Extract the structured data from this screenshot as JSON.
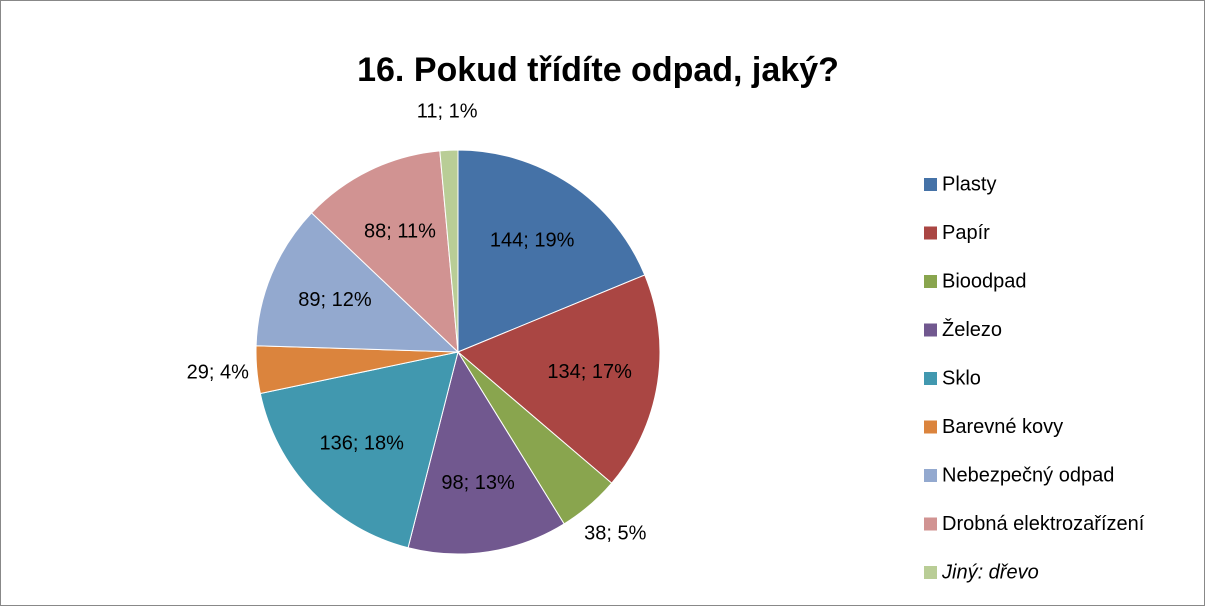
{
  "chart_data": {
    "type": "pie",
    "title": "16. Pokud třídíte odpad, jaký?",
    "categories": [
      "Plasty",
      "Papír",
      "Bioodpad",
      "Železo",
      "Sklo",
      "Barevné kovy",
      "Nebezpečný odpad",
      "Drobná elektrozařízení",
      "Jiný: dřevo"
    ],
    "values": [
      144,
      134,
      38,
      98,
      136,
      29,
      89,
      88,
      11
    ],
    "value_labels": [
      "144; 19%",
      "134; 17%",
      "38; 5%",
      "98; 13%",
      "136; 18%",
      "29; 4%",
      "89; 12%",
      "88; 11%",
      "11; 1%"
    ],
    "colors": [
      "#4572a7",
      "#aa4643",
      "#89a54e",
      "#71588f",
      "#4198af",
      "#db843d",
      "#93a9cf",
      "#d19392",
      "#b9cd96"
    ],
    "legend": "right"
  }
}
